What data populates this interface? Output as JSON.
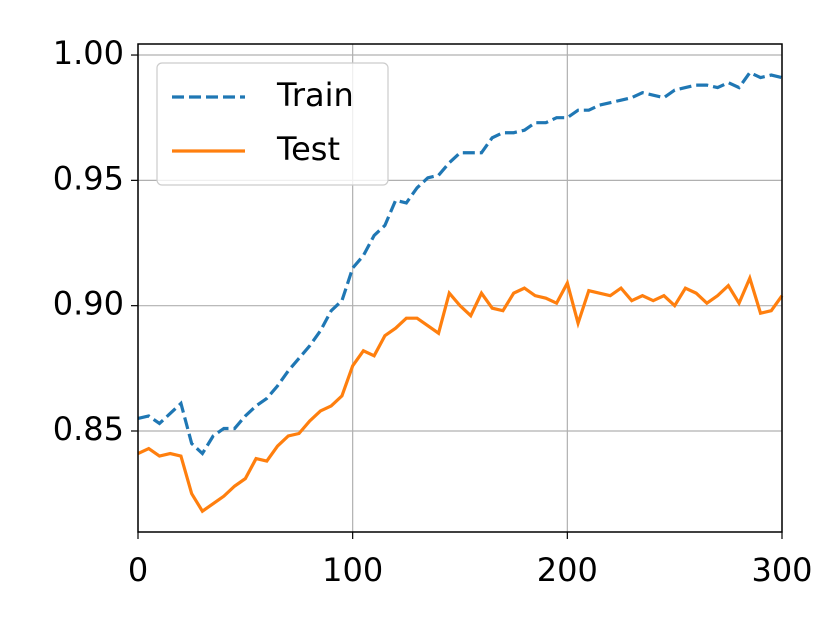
{
  "chart_data": {
    "type": "line",
    "x": [
      0,
      5,
      10,
      15,
      20,
      25,
      30,
      35,
      40,
      45,
      50,
      55,
      60,
      65,
      70,
      75,
      80,
      85,
      90,
      95,
      100,
      105,
      110,
      115,
      120,
      125,
      130,
      135,
      140,
      145,
      150,
      155,
      160,
      165,
      170,
      175,
      180,
      185,
      190,
      195,
      200,
      205,
      210,
      215,
      220,
      225,
      230,
      235,
      240,
      245,
      250,
      255,
      260,
      265,
      270,
      275,
      280,
      285,
      290,
      295,
      300
    ],
    "series": [
      {
        "name": "Train",
        "color": "#1f77b4",
        "linestyle": "dashed",
        "values": [
          0.855,
          0.856,
          0.853,
          0.857,
          0.861,
          0.845,
          0.841,
          0.848,
          0.851,
          0.851,
          0.856,
          0.86,
          0.863,
          0.868,
          0.874,
          0.879,
          0.884,
          0.89,
          0.898,
          0.902,
          0.915,
          0.92,
          0.928,
          0.932,
          0.942,
          0.941,
          0.947,
          0.951,
          0.952,
          0.957,
          0.961,
          0.961,
          0.961,
          0.967,
          0.969,
          0.969,
          0.97,
          0.973,
          0.973,
          0.975,
          0.975,
          0.978,
          0.978,
          0.98,
          0.981,
          0.982,
          0.983,
          0.985,
          0.984,
          0.983,
          0.986,
          0.987,
          0.988,
          0.988,
          0.987,
          0.989,
          0.987,
          0.993,
          0.991,
          0.992,
          0.991
        ]
      },
      {
        "name": "Test",
        "color": "#ff7f0e",
        "linestyle": "solid",
        "values": [
          0.841,
          0.843,
          0.84,
          0.841,
          0.84,
          0.825,
          0.818,
          0.821,
          0.824,
          0.828,
          0.831,
          0.839,
          0.838,
          0.844,
          0.848,
          0.849,
          0.854,
          0.858,
          0.86,
          0.864,
          0.876,
          0.882,
          0.88,
          0.888,
          0.891,
          0.895,
          0.895,
          0.892,
          0.889,
          0.905,
          0.9,
          0.896,
          0.905,
          0.899,
          0.898,
          0.905,
          0.907,
          0.904,
          0.903,
          0.901,
          0.909,
          0.893,
          0.906,
          0.905,
          0.904,
          0.907,
          0.902,
          0.904,
          0.902,
          0.904,
          0.9,
          0.907,
          0.905,
          0.901,
          0.904,
          0.908,
          0.901,
          0.911,
          0.897,
          0.898,
          0.904
        ]
      }
    ],
    "xlim": [
      0,
      300
    ],
    "xticks": [
      0,
      100,
      200,
      300
    ],
    "ylim": [
      0.8097,
      1.0044
    ],
    "yticks": [
      {
        "value": 0.85,
        "label": "0.85"
      },
      {
        "value": 0.9,
        "label": "0.90"
      },
      {
        "value": 0.95,
        "label": "0.95"
      },
      {
        "value": 1.0,
        "label": "1.00"
      }
    ],
    "grid": true,
    "legend": "upper-left"
  }
}
